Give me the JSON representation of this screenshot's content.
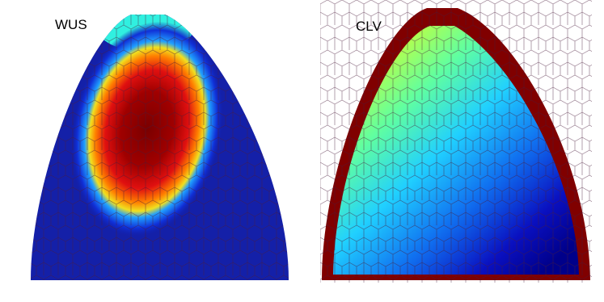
{
  "panels": [
    {
      "label": "WUS"
    },
    {
      "label": "CLV"
    }
  ]
}
